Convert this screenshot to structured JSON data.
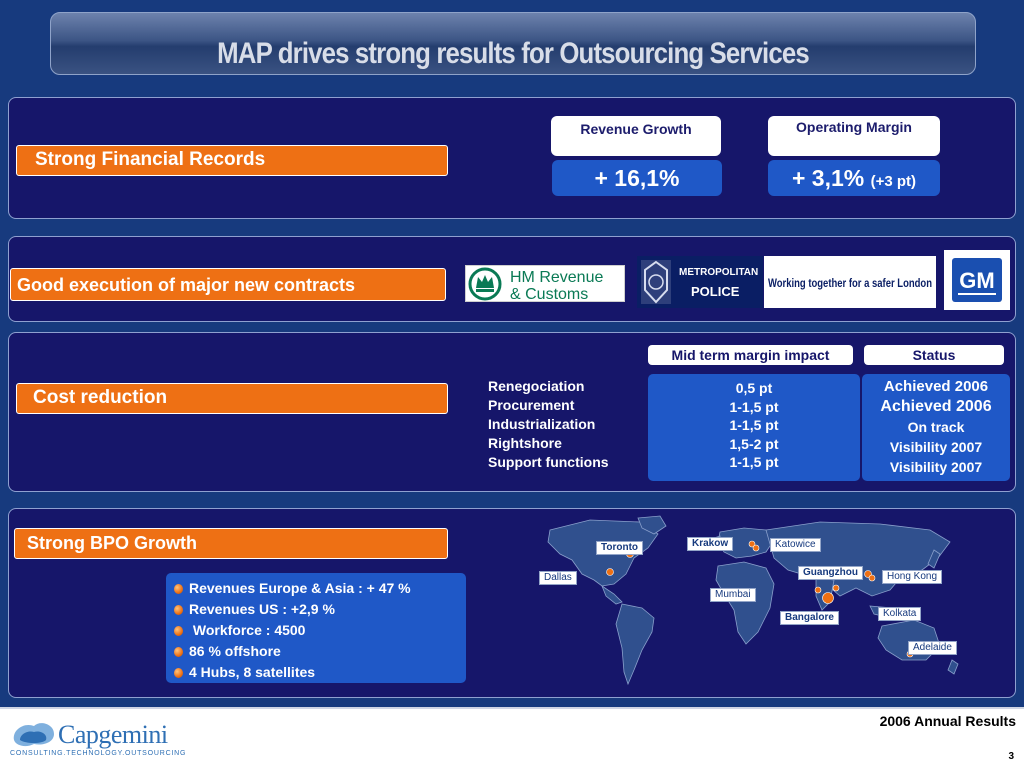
{
  "title": "MAP drives strong results for Outsourcing Services",
  "financial": {
    "label": "Strong Financial Records",
    "revenue_growth_header": "Revenue Growth",
    "revenue_growth_value": "+ 16,1%",
    "operating_margin_header": "Operating Margin",
    "operating_margin_value": "+ 3,1%",
    "operating_margin_note": "(+3 pt)"
  },
  "contracts": {
    "label": "Good execution of major new contracts",
    "logos": {
      "hmrc_line1": "HM Revenue",
      "hmrc_line2": "& Customs",
      "met_line1": "METROPOLITAN",
      "met_line2": "POLICE",
      "safer": "Working together for a safer London",
      "gm": "GM"
    }
  },
  "cost": {
    "label": "Cost reduction",
    "mid_term_header": "Mid term margin impact",
    "status_header": "Status",
    "items": [
      "Renegociation",
      "Procurement",
      "Industrialization",
      "Rightshore",
      "Support functions"
    ],
    "impacts": [
      "0,5 pt",
      "1-1,5 pt",
      "1-1,5 pt",
      "1,5-2 pt",
      "1-1,5 pt"
    ],
    "statuses": [
      "Achieved 2006",
      "Achieved 2006",
      "On track",
      "Visibility 2007",
      "Visibility 2007"
    ]
  },
  "bpo": {
    "label": "Strong BPO Growth",
    "bullets": [
      "Revenues Europe & Asia : + 47 %",
      "Revenues US : +2,9 %",
      " Workforce : 4500",
      "86 % offshore",
      "4 Hubs, 8 satellites"
    ],
    "cities": {
      "toronto": "Toronto",
      "dallas": "Dallas",
      "krakow": "Krakow",
      "katowice": "Katowice",
      "guangzhou": "Guangzhou",
      "hong_kong": "Hong Kong",
      "mumbai": "Mumbai",
      "bangalore": "Bangalore",
      "kolkata": "Kolkata",
      "adelaide": "Adelaide"
    }
  },
  "footer": {
    "annual_results": "2006 Annual Results",
    "page_number": "3",
    "brand": "Capgemini",
    "tagline": "CONSULTING.TECHNOLOGY.OUTSOURCING"
  },
  "colors": {
    "slide_bg": "#173a7e",
    "panel_bg": "#16166a",
    "accent_orange": "#ee7014",
    "accent_blue": "#1f58c7"
  }
}
